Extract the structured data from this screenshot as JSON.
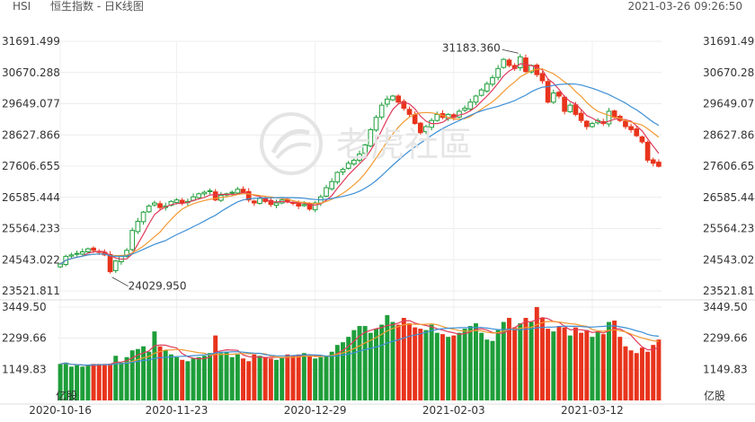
{
  "header": {
    "symbol": "HSI",
    "title": "恒生指数 - 日K线图",
    "timestamp": "2021-03-26 09:26:50"
  },
  "watermark": {
    "text": "老虎社區"
  },
  "volume_unit_label": "亿股",
  "colors": {
    "up": "#e8341c",
    "down": "#1e9e3a",
    "ma1": "#e03a5a",
    "ma2": "#f29a33",
    "ma3": "#3d8fd6"
  },
  "chart_data": [
    {
      "type": "candlestick",
      "title": "恒生指数 - 日K线图",
      "y_ticks": [
        "31691.499",
        "30670.288",
        "29649.077",
        "28627.866",
        "27606.655",
        "26585.444",
        "25564.233",
        "24543.022",
        "23521.811"
      ],
      "ylim": [
        23521.811,
        31691.499
      ],
      "x_tick_labels": [
        {
          "label": "2020-10-16",
          "index": 0
        },
        {
          "label": "2020-11-23",
          "index": 21
        },
        {
          "label": "2020-12-29",
          "index": 46
        },
        {
          "label": "2021-02-03",
          "index": 71
        },
        {
          "label": "2021-03-12",
          "index": 96
        }
      ],
      "annotations": [
        {
          "text": "31183.360",
          "index": 83,
          "value": 31183.36
        },
        {
          "text": "24029.950",
          "index": 9,
          "value": 24029.95
        }
      ],
      "moving_averages": [
        "MA5",
        "MA10",
        "MA20"
      ],
      "closes": [
        24400,
        24650,
        24700,
        24750,
        24800,
        24900,
        24850,
        24800,
        24700,
        24150,
        24500,
        24650,
        24850,
        25500,
        25800,
        26100,
        26300,
        26400,
        26250,
        26300,
        26450,
        26500,
        26400,
        26450,
        26600,
        26700,
        26750,
        26800,
        26500,
        26650,
        26700,
        26750,
        26850,
        26750,
        26500,
        26400,
        26550,
        26450,
        26350,
        26400,
        26500,
        26450,
        26400,
        26300,
        26350,
        26200,
        26400,
        26600,
        26900,
        27100,
        27400,
        27500,
        27700,
        27800,
        28000,
        28300,
        28800,
        29200,
        29600,
        29800,
        29900,
        29700,
        29500,
        29300,
        29000,
        28700,
        28900,
        29100,
        29300,
        29200,
        29300,
        29200,
        29400,
        29500,
        29700,
        29900,
        30100,
        30300,
        30500,
        30800,
        31100,
        30900,
        30800,
        31183,
        30700,
        30900,
        30600,
        30400,
        29700,
        30000,
        29900,
        29400,
        29600,
        29300,
        29100,
        28900,
        29000,
        29100,
        29000,
        29400,
        29200,
        29100,
        28900,
        28800,
        28600,
        28400,
        27800,
        27700,
        27600
      ]
    },
    {
      "type": "bar",
      "title": "",
      "y_ticks": [
        "3449.50",
        "2299.66",
        "1149.83"
      ],
      "ylim": [
        0,
        3449.5
      ],
      "values": [
        1350,
        1400,
        1250,
        1300,
        1250,
        1300,
        1350,
        1350,
        1350,
        1350,
        1650,
        1400,
        1600,
        1850,
        1900,
        2000,
        1800,
        2550,
        2000,
        1850,
        1700,
        1600,
        1500,
        1450,
        1550,
        1600,
        1650,
        1750,
        2400,
        1750,
        1800,
        1600,
        1700,
        1550,
        1450,
        1700,
        1650,
        1600,
        1550,
        1500,
        1600,
        1700,
        1650,
        1700,
        1750,
        1650,
        1550,
        1600,
        1650,
        1800,
        2050,
        2150,
        2350,
        2600,
        2750,
        2750,
        2500,
        2650,
        2800,
        3150,
        2900,
        2800,
        3050,
        2850,
        2700,
        2650,
        2600,
        2800,
        2500,
        2450,
        2350,
        2400,
        2500,
        2650,
        2750,
        2850,
        2500,
        2250,
        2200,
        2600,
        2900,
        3050,
        2700,
        2850,
        3050,
        2900,
        3450,
        3050,
        2650,
        2550,
        2750,
        2700,
        2400,
        2700,
        2500,
        2600,
        2350,
        2550,
        2450,
        2900,
        2950,
        2350,
        2000,
        1850,
        1750,
        1950,
        1800,
        2050,
        2250
      ],
      "ma_lines": 3
    }
  ]
}
